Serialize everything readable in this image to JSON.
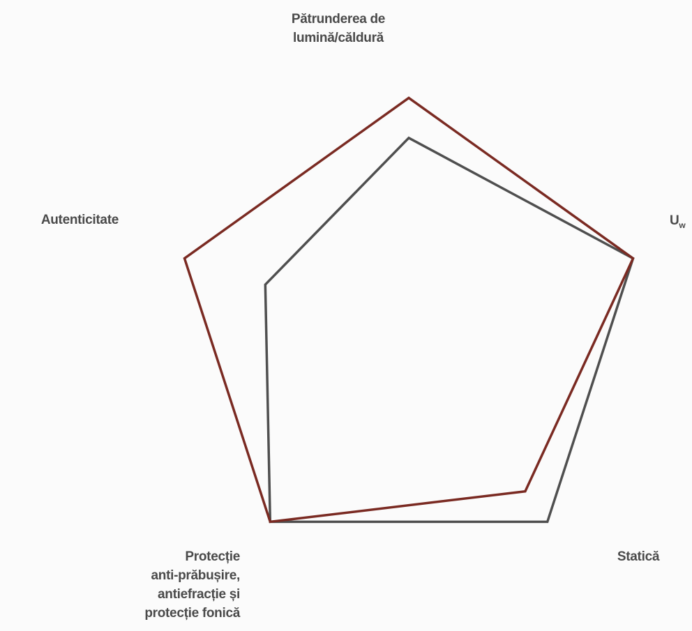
{
  "chart_data": {
    "type": "radar",
    "axes": [
      {
        "key": "light",
        "label_lines": [
          "Pătrunderea de",
          "lumină/căldură"
        ]
      },
      {
        "key": "uw",
        "label_main": "U",
        "label_sub": "w"
      },
      {
        "key": "static",
        "label_lines": [
          "Statică"
        ]
      },
      {
        "key": "protection",
        "label_lines": [
          "Protecție",
          "anti-prăbușire,",
          "antiefracție și",
          "protecție fonică"
        ]
      },
      {
        "key": "authenticity",
        "label_lines": [
          "Autenticitate"
        ]
      }
    ],
    "range": [
      0,
      1
    ],
    "grid": false,
    "legend": "none",
    "series": [
      {
        "color": "#4f4f4f",
        "values": [
          0.82,
          1.0,
          1.0,
          1.0,
          0.64
        ]
      },
      {
        "color": "#7a2a22",
        "values": [
          0.99,
          1.0,
          0.84,
          1.0,
          1.0
        ]
      }
    ]
  }
}
